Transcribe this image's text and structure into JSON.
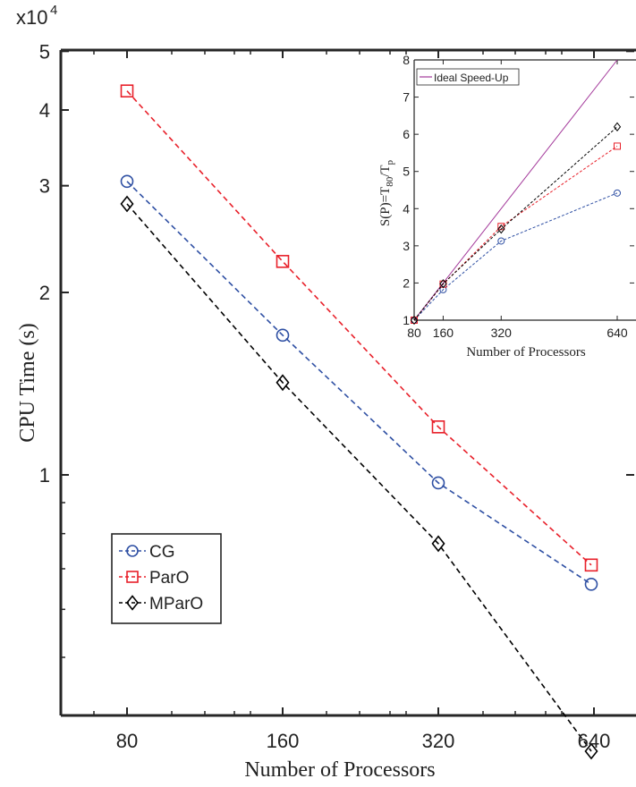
{
  "chart_data": [
    {
      "type": "line",
      "xlabel": "Number of Processors",
      "ylabel": "CPU Time (s)",
      "y_exponent_label": "x10",
      "y_exponent_power": "4",
      "x_scale": "log2",
      "y_scale": "log",
      "categories": [
        "80",
        "160",
        "320",
        "640"
      ],
      "x": [
        80,
        160,
        320,
        640
      ],
      "ylim": [
        0.3,
        5
      ],
      "yticks": [
        {
          "value": 1,
          "label": "1"
        },
        {
          "value": 2,
          "label": "2"
        },
        {
          "value": 3,
          "label": "3"
        },
        {
          "value": 4,
          "label": "4"
        },
        {
          "value": 5,
          "label": "5"
        }
      ],
      "legend_position": "bottom-left",
      "series": [
        {
          "name": "CG",
          "marker": "circle",
          "color": "#2e4fa3",
          "values": [
            3.05,
            1.7,
            0.97,
            0.66
          ]
        },
        {
          "name": "ParO",
          "marker": "square",
          "color": "#e8202a",
          "values": [
            4.3,
            2.25,
            1.2,
            0.71
          ]
        },
        {
          "name": "MParO",
          "marker": "diamond",
          "color": "#000000",
          "values": [
            2.8,
            1.42,
            0.77,
            0.35
          ]
        }
      ]
    },
    {
      "type": "line",
      "xlabel": "Number of Processors",
      "ylabel_main": "S(P)=T",
      "ylabel_sub1": "80",
      "ylabel_mid": "/T",
      "ylabel_sub2": "p",
      "x": [
        80,
        160,
        320,
        640
      ],
      "xticks": [
        "80",
        "160",
        "320",
        "640"
      ],
      "xlim": [
        80,
        680
      ],
      "ylim": [
        1,
        8
      ],
      "yticks": [
        "1",
        "2",
        "3",
        "4",
        "5",
        "6",
        "7",
        "8"
      ],
      "legend_position": "top-left",
      "series": [
        {
          "name": "Ideal Speed-Up",
          "color": "#a3389a",
          "x": [
            80,
            640
          ],
          "values": [
            1,
            8
          ],
          "style": "solid"
        },
        {
          "color": "#2e4fa3",
          "marker": "circle",
          "values": [
            1,
            1.82,
            3.13,
            4.42
          ]
        },
        {
          "color": "#e8202a",
          "marker": "square",
          "values": [
            1,
            1.97,
            3.52,
            5.68
          ]
        },
        {
          "color": "#000000",
          "marker": "diamond",
          "values": [
            1,
            1.98,
            3.45,
            6.2
          ]
        }
      ]
    }
  ]
}
